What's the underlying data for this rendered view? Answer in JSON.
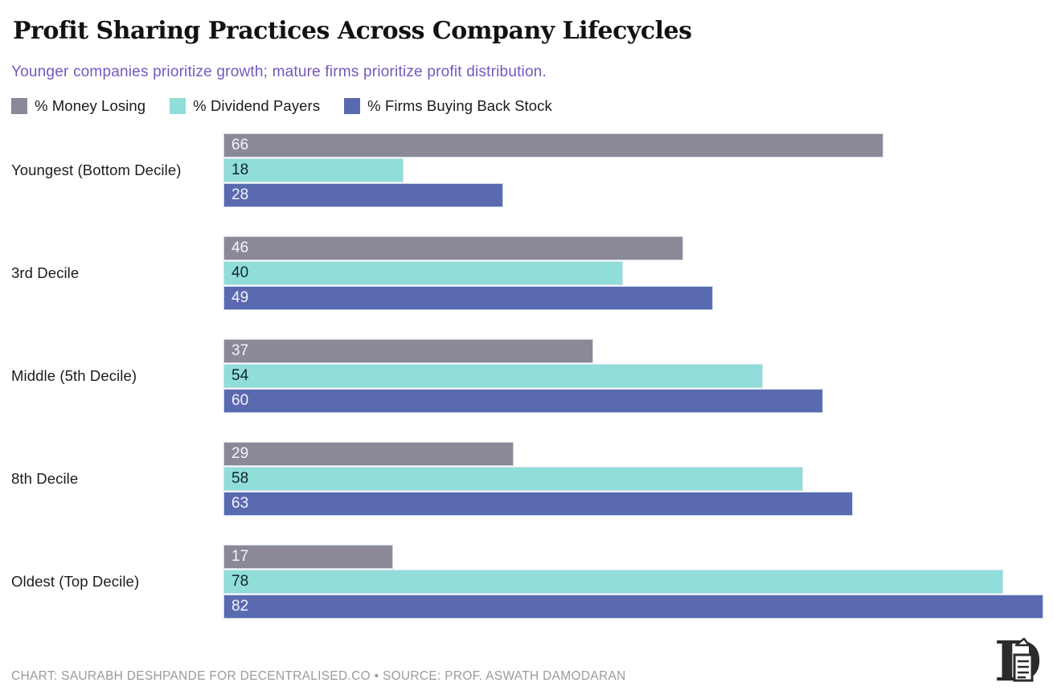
{
  "title": "Profit Sharing Practices Across Company Lifecycles",
  "subtitle": "Younger companies prioritize growth; mature firms prioritize profit distribution.",
  "legend": [
    {
      "label": "% Money Losing",
      "color": "#8C8898"
    },
    {
      "label": "% Dividend Payers",
      "color": "#90DDD9"
    },
    {
      "label": "% Firms Buying Back Stock",
      "color": "#5A6AB1"
    }
  ],
  "chart_data": {
    "type": "bar",
    "orientation": "horizontal",
    "title": "Profit Sharing Practices Across Company Lifecycles",
    "subtitle": "Younger companies prioritize growth; mature firms prioritize profit distribution.",
    "categories": [
      "Youngest (Bottom Decile)",
      "3rd Decile",
      "Middle (5th Decile)",
      "8th Decile",
      "Oldest (Top Decile)"
    ],
    "series": [
      {
        "name": "% Money Losing",
        "color": "#8C8898",
        "label_color": "#F4F3F7",
        "values": [
          66,
          46,
          37,
          29,
          17
        ]
      },
      {
        "name": "% Dividend Payers",
        "color": "#90DDD9",
        "label_color": "#10262B",
        "values": [
          18,
          40,
          54,
          58,
          78
        ]
      },
      {
        "name": "% Firms Buying Back Stock",
        "color": "#5A6AB1",
        "label_color": "#F4F3F7",
        "values": [
          28,
          49,
          60,
          63,
          82
        ]
      }
    ],
    "xlim": [
      0,
      83
    ],
    "value_labels": "inside-left",
    "grid": false,
    "legend_position": "top",
    "axis_ticks": "none"
  },
  "footer": {
    "credit": "CHART: SAURABH DESHPANDE FOR DECENTRALISED.CO • SOURCE: PROF. ASWATH DAMODARAN"
  },
  "logo": {
    "name": "decentralised-lettermark",
    "letter": "D"
  },
  "colors": {
    "background": "#FFFFFF",
    "title": "#121212",
    "subtitle": "#7458BE",
    "category_label": "#1C1C1C",
    "credit": "#9B9B9B",
    "logo": "#2B2B2B"
  }
}
